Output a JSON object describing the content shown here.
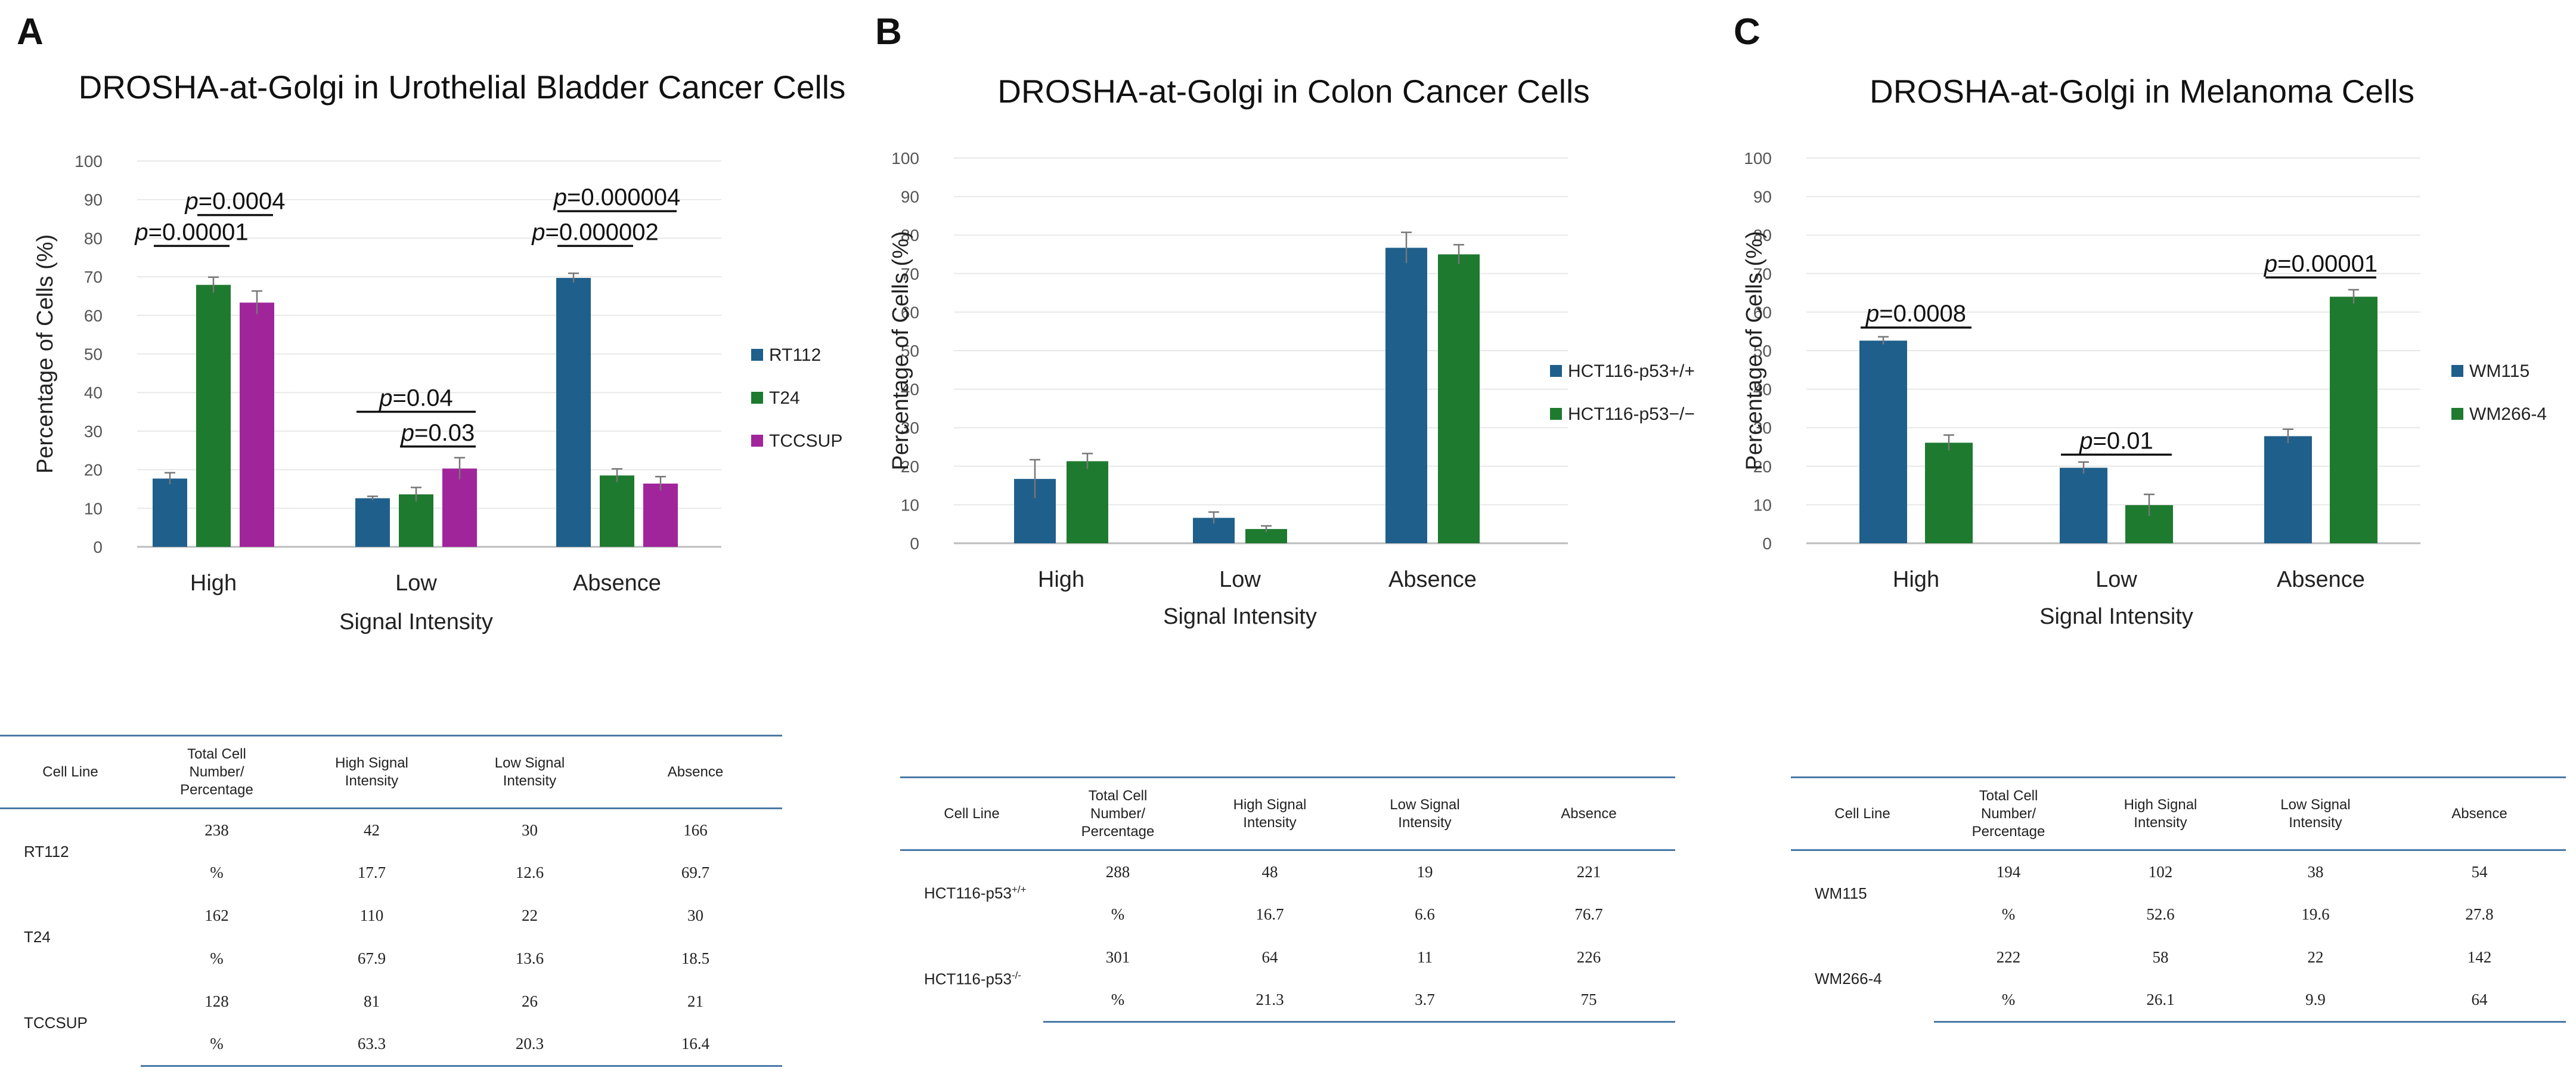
{
  "colors": {
    "blue": "#1f5f8b",
    "green": "#1e7a2f",
    "magenta": "#a0259b"
  },
  "panels": [
    {
      "letter": "A",
      "table": {
        "headers": [
          "Cell Line",
          "Total Cell\nNumber/\nPercentage",
          "High Signal\nIntensity",
          "Low Signal\nIntensity",
          "Absence"
        ],
        "rows": [
          {
            "cell_line": "RT112",
            "values": [
              [
                "238",
                "42",
                "30",
                "166"
              ],
              [
                "%",
                "17.7",
                "12.6",
                "69.7"
              ]
            ]
          },
          {
            "cell_line": "T24",
            "values": [
              [
                "162",
                "110",
                "22",
                "30"
              ],
              [
                "%",
                "67.9",
                "13.6",
                "18.5"
              ]
            ]
          },
          {
            "cell_line": "TCCSUP",
            "values": [
              [
                "128",
                "81",
                "26",
                "21"
              ],
              [
                "%",
                "63.3",
                "20.3",
                "16.4"
              ]
            ]
          }
        ]
      }
    },
    {
      "letter": "B",
      "table": {
        "headers": [
          "Cell Line",
          "Total Cell\nNumber/\nPercentage",
          "High Signal\nIntensity",
          "Low Signal\nIntensity",
          "Absence"
        ],
        "rows": [
          {
            "cell_line": "HCT116-p53",
            "cell_line_sup": "+/+",
            "values": [
              [
                "288",
                "48",
                "19",
                "221"
              ],
              [
                "%",
                "16.7",
                "6.6",
                "76.7"
              ]
            ]
          },
          {
            "cell_line": "HCT116-p53",
            "cell_line_sup": "-/-",
            "values": [
              [
                "301",
                "64",
                "11",
                "226"
              ],
              [
                "%",
                "21.3",
                "3.7",
                "75"
              ]
            ]
          }
        ]
      }
    },
    {
      "letter": "C",
      "table": {
        "headers": [
          "Cell Line",
          "Total Cell\nNumber/\nPercentage",
          "High Signal\nIntensity",
          "Low Signal\nIntensity",
          "Absence"
        ],
        "rows": [
          {
            "cell_line": "WM115",
            "values": [
              [
                "194",
                "102",
                "38",
                "54"
              ],
              [
                "%",
                "52.6",
                "19.6",
                "27.8"
              ]
            ]
          },
          {
            "cell_line": "WM266-4",
            "values": [
              [
                "222",
                "58",
                "22",
                "142"
              ],
              [
                "%",
                "26.1",
                "9.9",
                "64"
              ]
            ]
          }
        ]
      }
    }
  ],
  "chart_data": [
    {
      "type": "bar",
      "title": "DROSHA-at-Golgi in Urothelial Bladder Cancer Cells",
      "xlabel": "Signal Intensity",
      "ylabel": "Percentage of Cells (%)",
      "ylim": [
        0,
        100
      ],
      "yticks": [
        0,
        10,
        20,
        30,
        40,
        50,
        60,
        70,
        80,
        90,
        100
      ],
      "legend": "right",
      "categories": [
        "High",
        "Low",
        "Absence"
      ],
      "series": [
        {
          "name": "RT112",
          "color": "#1f5f8b",
          "values": [
            17.7,
            12.6,
            69.7
          ],
          "errors": [
            1.5,
            0.5,
            1.2
          ]
        },
        {
          "name": "T24",
          "color": "#1e7a2f",
          "values": [
            67.9,
            13.6,
            18.5
          ],
          "errors": [
            2.0,
            1.8,
            1.7
          ]
        },
        {
          "name": "TCCSUP",
          "color": "#a0259b",
          "values": [
            63.3,
            20.3,
            16.4
          ],
          "errors": [
            3.0,
            2.8,
            1.8
          ]
        }
      ],
      "annotations": [
        {
          "category": 0,
          "from": 0,
          "to": 1,
          "level": 78,
          "p": "=0.00001"
        },
        {
          "category": 0,
          "from": 1,
          "to": 2,
          "level": 86,
          "p": "=0.0004"
        },
        {
          "category": 1,
          "from": 0,
          "to": 2,
          "level": 35,
          "p": "=0.04"
        },
        {
          "category": 1,
          "from": 1,
          "to": 2,
          "level": 26,
          "p": "=0.03"
        },
        {
          "category": 2,
          "from": 0,
          "to": 1,
          "level": 78,
          "p": "=0.000002"
        },
        {
          "category": 2,
          "from": 0,
          "to": 2,
          "level": 87,
          "p": "=0.000004"
        }
      ]
    },
    {
      "type": "bar",
      "title": "DROSHA-at-Golgi in Colon Cancer Cells",
      "xlabel": "Signal Intensity",
      "ylabel": "Percentage of Cells (%)",
      "ylim": [
        0,
        100
      ],
      "yticks": [
        0,
        10,
        20,
        30,
        40,
        50,
        60,
        70,
        80,
        90,
        100
      ],
      "legend": "right",
      "categories": [
        "High",
        "Low",
        "Absence"
      ],
      "series": [
        {
          "name": "HCT116-p53+/+",
          "color": "#1f5f8b",
          "values": [
            16.7,
            6.6,
            76.7
          ],
          "errors": [
            5.0,
            1.5,
            4.0
          ]
        },
        {
          "name": "HCT116-p53−/−",
          "color": "#1e7a2f",
          "values": [
            21.3,
            3.7,
            75
          ],
          "errors": [
            2.0,
            0.8,
            2.5
          ]
        }
      ],
      "annotations": []
    },
    {
      "type": "bar",
      "title": "DROSHA-at-Golgi in Melanoma Cells",
      "xlabel": "Signal Intensity",
      "ylabel": "Percentage of Cells (%)",
      "ylim": [
        0,
        100
      ],
      "yticks": [
        0,
        10,
        20,
        30,
        40,
        50,
        60,
        70,
        80,
        90,
        100
      ],
      "legend": "right",
      "categories": [
        "High",
        "Low",
        "Absence"
      ],
      "series": [
        {
          "name": "WM115",
          "color": "#1f5f8b",
          "values": [
            52.6,
            19.6,
            27.8
          ],
          "errors": [
            1.0,
            1.5,
            1.8
          ]
        },
        {
          "name": "WM266-4",
          "color": "#1e7a2f",
          "values": [
            26.1,
            9.9,
            64
          ],
          "errors": [
            2.0,
            2.8,
            1.8
          ]
        }
      ],
      "annotations": [
        {
          "category": 0,
          "from": 0,
          "to": 1,
          "level": 56,
          "p": "=0.0008"
        },
        {
          "category": 1,
          "from": 0,
          "to": 1,
          "level": 23,
          "p": "=0.01"
        },
        {
          "category": 2,
          "from": 0,
          "to": 1,
          "level": 69,
          "p": "=0.00001"
        }
      ]
    }
  ]
}
